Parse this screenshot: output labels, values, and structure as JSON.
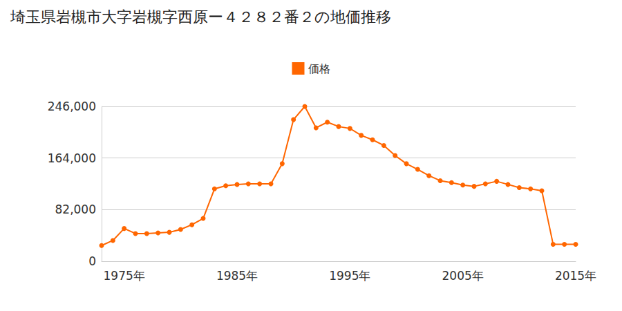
{
  "chart_data": {
    "type": "line",
    "title": "埼玉県岩槻市大字岩槻字西原ー４２８２番２の地価推移",
    "categories": [
      null,
      null,
      "1975年",
      null,
      null,
      null,
      null,
      null,
      null,
      null,
      null,
      null,
      "1985年",
      null,
      null,
      null,
      null,
      null,
      null,
      null,
      null,
      null,
      "1995年",
      null,
      null,
      null,
      null,
      null,
      null,
      null,
      null,
      null,
      "2005年",
      null,
      null,
      null,
      null,
      null,
      null,
      null,
      null,
      null,
      "2015年"
    ],
    "series": [
      {
        "name": "価格",
        "color": "#ff6600",
        "marker": "circle",
        "values": [
          25000,
          33000,
          52000,
          44000,
          44000,
          45000,
          46000,
          50500,
          58000,
          68000,
          115000,
          120000,
          122000,
          123000,
          123000,
          123000,
          155000,
          225000,
          246000,
          212000,
          221000,
          214000,
          211000,
          200000,
          193000,
          184000,
          168000,
          155000,
          146000,
          136000,
          128000,
          125000,
          121000,
          119000,
          123000,
          127000,
          122000,
          117000,
          115000,
          112000,
          27000,
          27000,
          27000
        ]
      }
    ],
    "ylim": [
      0,
      246000
    ],
    "yticks": [
      0,
      {
        "value": 82000,
        "label": "82,000"
      },
      {
        "value": 164000,
        "label": "164,000"
      },
      {
        "value": 246000,
        "label": "246,000"
      }
    ],
    "grid": true,
    "legend": "top"
  }
}
